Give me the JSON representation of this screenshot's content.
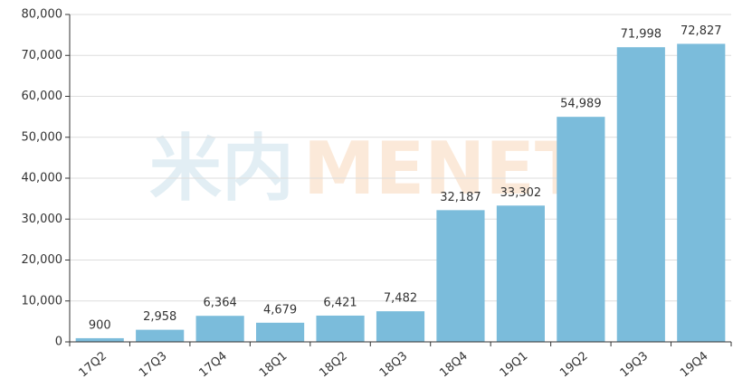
{
  "chart_data": {
    "type": "bar",
    "categories": [
      "17Q2",
      "17Q3",
      "17Q4",
      "18Q1",
      "18Q2",
      "18Q3",
      "18Q4",
      "19Q1",
      "19Q2",
      "19Q3",
      "19Q4"
    ],
    "values": [
      900,
      2958,
      6364,
      4679,
      6421,
      7482,
      32187,
      33302,
      54989,
      71998,
      72827
    ],
    "value_labels": [
      "900",
      "2,958",
      "6,364",
      "4,679",
      "6,421",
      "7,482",
      "32,187",
      "33,302",
      "54,989",
      "71,998",
      "72,827"
    ],
    "color": "#7bbcdb",
    "ylim": [
      0,
      80000
    ],
    "yticks": [
      0,
      {
        "value": 10000,
        "label": "10,000"
      },
      {
        "value": 20000,
        "label": "20,000"
      },
      {
        "value": 30000,
        "label": "30,000"
      },
      {
        "value": 40000,
        "label": "40,000"
      },
      {
        "value": 50000,
        "label": "50,000"
      },
      {
        "value": 60000,
        "label": "60,000"
      },
      {
        "value": 70000,
        "label": "70,000"
      },
      {
        "value": 80000,
        "label": "80,000"
      }
    ],
    "grid": true,
    "watermark": [
      "米内",
      "MENET"
    ]
  }
}
